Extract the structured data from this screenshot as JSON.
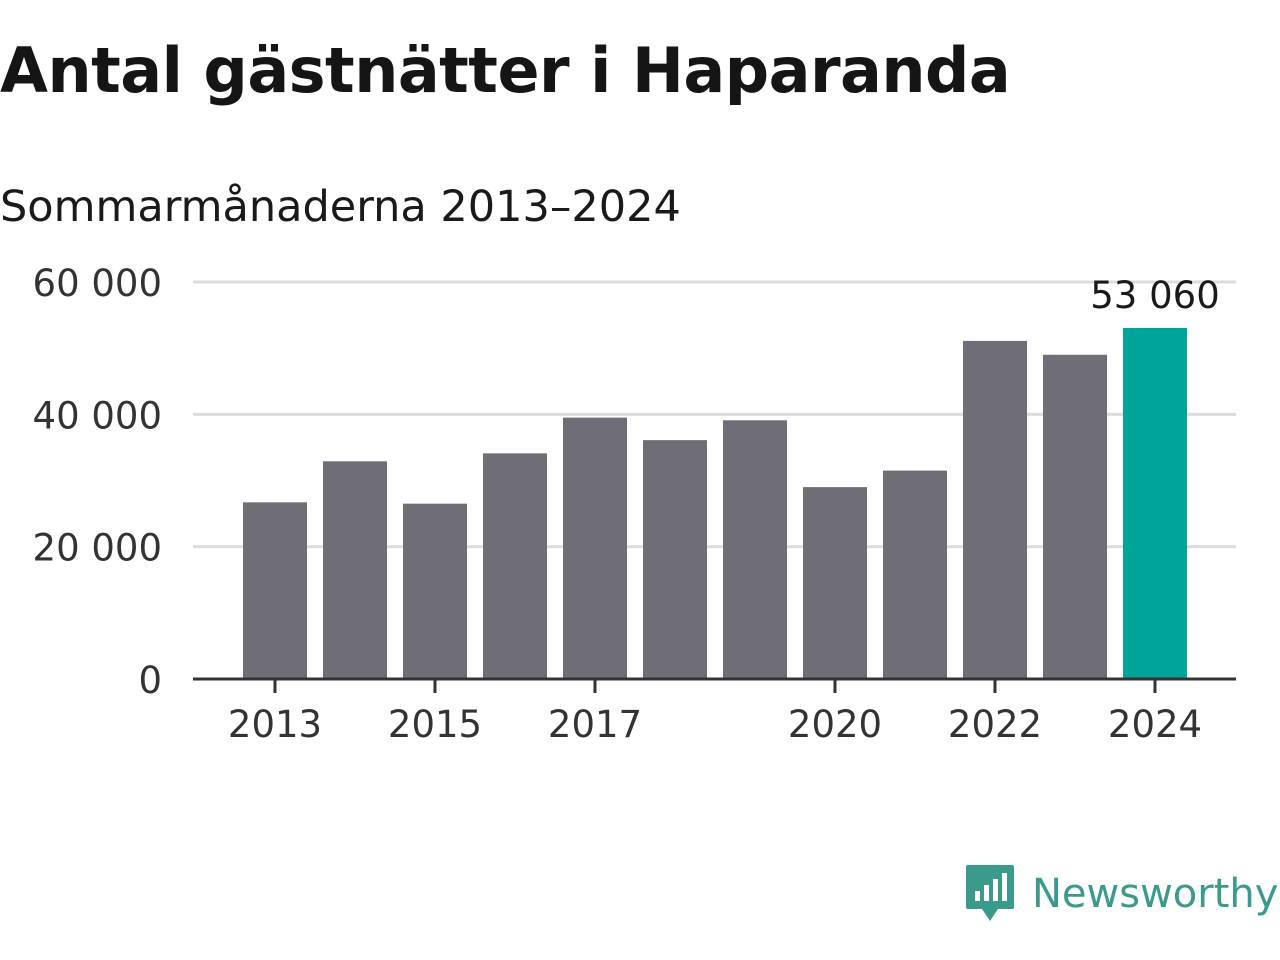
{
  "colors": {
    "bar": "#6f6e76",
    "highlight": "#00a499",
    "grid": "#dcdcdc",
    "axis": "#333333",
    "brand": "#3a9a8c"
  },
  "brand": {
    "name": "Newsworthy",
    "logo_icon": "newsworthy-logo-icon"
  },
  "chart_data": {
    "type": "bar",
    "title": "Antal gästnätter i Haparanda",
    "subtitle": "Sommarmånaderna 2013–2024",
    "categories": [
      "2013",
      "2014",
      "2015",
      "2016",
      "2017",
      "2018",
      "2019",
      "2020",
      "2021",
      "2022",
      "2023",
      "2024"
    ],
    "values": [
      26700,
      32900,
      26500,
      34100,
      39500,
      36100,
      39100,
      29000,
      31500,
      51100,
      49000,
      53060
    ],
    "highlight_index": 11,
    "value_labels": [
      {
        "index": 11,
        "text": "53 060"
      }
    ],
    "x_tick_labels": [
      {
        "index": 0,
        "text": "2013"
      },
      {
        "index": 2,
        "text": "2015"
      },
      {
        "index": 4,
        "text": "2017"
      },
      {
        "index": 7,
        "text": "2020"
      },
      {
        "index": 9,
        "text": "2022"
      },
      {
        "index": 11,
        "text": "2024"
      }
    ],
    "y_ticks": [
      {
        "value": 0,
        "text": "0"
      },
      {
        "value": 20000,
        "text": "20 000"
      },
      {
        "value": 40000,
        "text": "40 000"
      },
      {
        "value": 60000,
        "text": "60 000"
      }
    ],
    "ylim": [
      0,
      60000
    ],
    "grid": true,
    "xlabel": "",
    "ylabel": ""
  }
}
